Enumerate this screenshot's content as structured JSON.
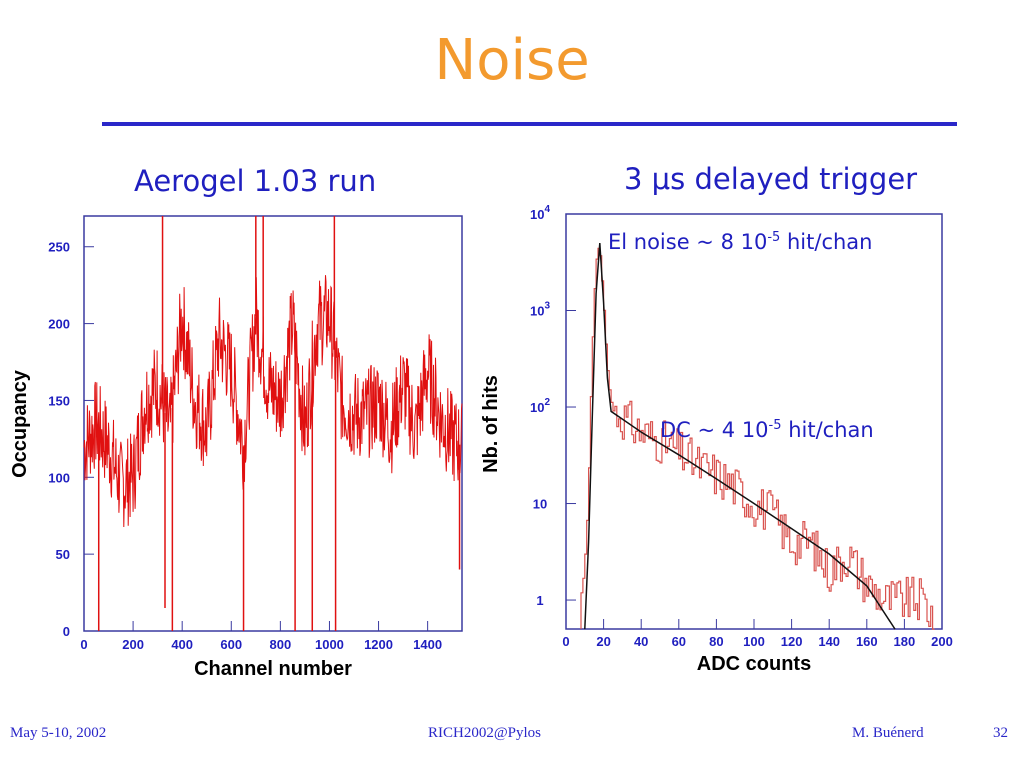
{
  "slide": {
    "title": "Noise",
    "left_heading": "Aerogel 1.03 run",
    "right_heading_prefix": "3 ",
    "right_heading_mu": "μ",
    "right_heading_suffix": "s delayed trigger",
    "footer_left": "May 5-10, 2002",
    "footer_center": "RICH2002@Pylos",
    "footer_author": "M. Buénerd",
    "footer_page": "32"
  },
  "chart_data": [
    {
      "type": "line",
      "xlabel": "Channel number",
      "ylabel": "Occupancy",
      "xlim": [
        0,
        1540
      ],
      "ylim": [
        0,
        270
      ],
      "xticks": [
        "0",
        "200",
        "400",
        "600",
        "800",
        "1000",
        "1200",
        "1400"
      ],
      "yticks": [
        "0",
        "50",
        "100",
        "150",
        "200",
        "250"
      ],
      "color": "#e01010",
      "series_shape": {
        "x": [
          0,
          50,
          100,
          150,
          200,
          250,
          300,
          350,
          400,
          450,
          500,
          550,
          600,
          650,
          700,
          750,
          800,
          850,
          900,
          950,
          1000,
          1050,
          1100,
          1150,
          1200,
          1250,
          1300,
          1350,
          1400,
          1450,
          1500,
          1540
        ],
        "y": [
          120,
          135,
          120,
          95,
          100,
          150,
          160,
          130,
          205,
          150,
          130,
          190,
          170,
          120,
          205,
          160,
          150,
          200,
          130,
          200,
          205,
          150,
          140,
          140,
          150,
          130,
          160,
          130,
          170,
          140,
          125,
          120
        ]
      },
      "spikes": [
        {
          "x": 60,
          "y": 0
        },
        {
          "x": 320,
          "y": 270
        },
        {
          "x": 330,
          "y": 15
        },
        {
          "x": 360,
          "y": 0
        },
        {
          "x": 650,
          "y": 0
        },
        {
          "x": 700,
          "y": 270
        },
        {
          "x": 730,
          "y": 270
        },
        {
          "x": 860,
          "y": 0
        },
        {
          "x": 930,
          "y": 0
        },
        {
          "x": 1020,
          "y": 270
        },
        {
          "x": 1025,
          "y": 0
        },
        {
          "x": 1530,
          "y": 40
        }
      ]
    },
    {
      "type": "line",
      "xlabel": "ADC counts",
      "ylabel": "Nb. of hits",
      "xlim": [
        0,
        200
      ],
      "ylim_log10": [
        -0.3,
        4
      ],
      "xticks": [
        "0",
        "20",
        "40",
        "60",
        "80",
        "100",
        "120",
        "140",
        "160",
        "180",
        "200"
      ],
      "yticks": [
        {
          "base": "10",
          "exp": "4",
          "value": 10000
        },
        {
          "base": "10",
          "exp": "3",
          "value": 1000
        },
        {
          "base": "10",
          "exp": "2",
          "value": 100
        },
        {
          "base": "10",
          "exp": "",
          "value": 10
        },
        {
          "base": "1",
          "exp": "",
          "value": 1
        }
      ],
      "histogram": {
        "color": "#d9534f",
        "x": [
          8,
          10,
          12,
          14,
          16,
          18,
          20,
          22,
          24,
          26,
          30,
          40,
          50,
          60,
          70,
          80,
          90,
          100,
          110,
          120,
          130,
          140,
          150,
          160,
          170,
          180,
          190,
          195
        ],
        "y": [
          1,
          2,
          10,
          300,
          3000,
          5000,
          1500,
          300,
          120,
          90,
          80,
          55,
          45,
          35,
          25,
          20,
          15,
          10,
          8,
          4,
          4,
          2,
          3,
          1.5,
          1,
          1,
          1,
          0.7
        ]
      },
      "fit": {
        "color": "#111111",
        "x": [
          10,
          12,
          14,
          16,
          18,
          20,
          22,
          24,
          30,
          40,
          60,
          80,
          100,
          120,
          140,
          160,
          175
        ],
        "y": [
          0.5,
          4,
          80,
          1500,
          5000,
          1200,
          200,
          90,
          75,
          55,
          32,
          18,
          10,
          5.5,
          3,
          1.4,
          0.5
        ]
      },
      "annotations": [
        {
          "pre": "El noise ~ 8 10",
          "sup": "-5",
          "post": " hit/chan"
        },
        {
          "pre": "DC ~ 4 10",
          "sup": "-5",
          "post": " hit/chan"
        }
      ]
    }
  ]
}
